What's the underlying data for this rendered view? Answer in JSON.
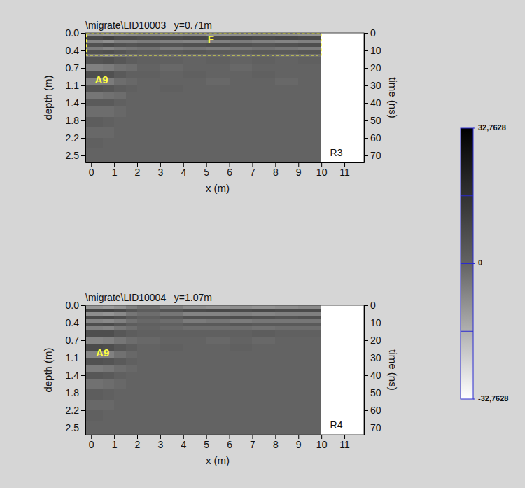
{
  "chart_data": [
    {
      "type": "heatmap",
      "title": "\\migrate\\LID10003   y=0.71m",
      "xlabel": "x (m)",
      "ylabel": "depth (m)",
      "y2label": "time (ns)",
      "xlim": [
        -0.25,
        11.85
      ],
      "xticks": [
        0,
        1,
        2,
        3,
        4,
        5,
        6,
        7,
        8,
        9,
        10,
        11
      ],
      "ylim": [
        0,
        2.664
      ],
      "yticks": [
        {
          "value": 0,
          "label": "0.0"
        },
        {
          "value": 0.36,
          "label": "0.4"
        },
        {
          "value": 0.72,
          "label": "0.7"
        },
        {
          "value": 1.08,
          "label": "1.1"
        },
        {
          "value": 1.44,
          "label": "1.4"
        },
        {
          "value": 1.8,
          "label": "1.8"
        },
        {
          "value": 2.16,
          "label": "2.2"
        },
        {
          "value": 2.52,
          "label": "2.5"
        }
      ],
      "y2lim": [
        0,
        74
      ],
      "y2ticks": [
        0,
        10,
        20,
        30,
        40,
        50,
        60,
        70
      ],
      "x_edges": [
        -0.25,
        0.5,
        1,
        1.5,
        2,
        3,
        4,
        5,
        6,
        7,
        8,
        9,
        10
      ],
      "time_edges": [
        0,
        2,
        4,
        6,
        8,
        10,
        12,
        14,
        18,
        22,
        26,
        30,
        34,
        38,
        42,
        48,
        54,
        60,
        66,
        74
      ],
      "cells": [
        [
          -10,
          -12,
          -10,
          -9,
          -8,
          -9,
          -8,
          -10,
          -9,
          -8,
          -9,
          -10
        ],
        [
          9,
          11,
          8,
          8,
          7,
          8,
          9,
          8,
          9,
          8,
          9,
          8
        ],
        [
          -7,
          -9,
          -6,
          -6,
          -5,
          -6,
          -7,
          -6,
          -5,
          -6,
          -7,
          -6
        ],
        [
          6,
          8,
          6,
          5,
          6,
          5,
          6,
          7,
          6,
          5,
          6,
          7
        ],
        [
          -5,
          -7,
          -5,
          -4,
          -3,
          -5,
          -4,
          -5,
          -4,
          -3,
          -4,
          -5
        ],
        [
          6,
          7,
          5,
          3,
          2,
          3,
          4,
          3,
          2,
          3,
          3,
          4
        ],
        [
          -4,
          -6,
          -4,
          -3,
          -1,
          -2,
          -2,
          -1,
          -2,
          -1,
          -2,
          -2
        ],
        [
          5,
          6,
          4,
          2,
          1,
          1,
          0,
          1,
          0,
          1,
          0,
          1
        ],
        [
          -6,
          -5,
          -3,
          -2,
          0,
          -1,
          0,
          0,
          -1,
          0,
          0,
          0
        ],
        [
          7,
          6,
          3,
          1,
          1,
          0,
          1,
          0,
          0,
          1,
          0,
          0
        ],
        [
          -6,
          -5,
          -2,
          -1,
          0,
          0,
          0,
          -1,
          0,
          0,
          -1,
          0
        ],
        [
          5,
          4,
          2,
          1,
          0,
          1,
          0,
          0,
          0,
          0,
          0,
          0
        ],
        [
          -4,
          -3,
          -2,
          0,
          0,
          0,
          0,
          0,
          0,
          0,
          0,
          0
        ],
        [
          3,
          3,
          1,
          0,
          0,
          0,
          0,
          0,
          0,
          0,
          0,
          0
        ],
        [
          -2,
          -2,
          -1,
          0,
          0,
          0,
          0,
          0,
          0,
          0,
          0,
          0
        ],
        [
          2,
          1,
          0,
          0,
          0,
          0,
          0,
          0,
          0,
          0,
          0,
          0
        ],
        [
          -1,
          -1,
          0,
          0,
          0,
          0,
          0,
          0,
          0,
          0,
          0,
          0
        ],
        [
          1,
          0,
          0,
          0,
          0,
          0,
          0,
          0,
          0,
          0,
          0,
          0
        ],
        [
          0,
          0,
          0,
          0,
          0,
          0,
          0,
          0,
          0,
          0,
          0,
          0
        ]
      ],
      "highlight": {
        "x": [
          -0.2,
          10
        ],
        "y": [
          0.01,
          0.46
        ]
      },
      "annotations": [
        {
          "text": "F",
          "x": 5.2,
          "y": 0.14
        },
        {
          "text": "A9",
          "x": 0.45,
          "y": 0.98
        }
      ],
      "panel_label": {
        "text": "R3",
        "x": 10.65,
        "y": 2.48
      }
    },
    {
      "type": "heatmap",
      "title": "\\migrate\\LID10004   y=1.07m",
      "xlabel": "x (m)",
      "ylabel": "depth (m)",
      "y2label": "time (ns)",
      "xlim": [
        -0.25,
        11.85
      ],
      "xticks": [
        0,
        1,
        2,
        3,
        4,
        5,
        6,
        7,
        8,
        9,
        10,
        11
      ],
      "ylim": [
        0,
        2.664
      ],
      "yticks": [
        {
          "value": 0,
          "label": "0.0"
        },
        {
          "value": 0.36,
          "label": "0.4"
        },
        {
          "value": 0.72,
          "label": "0.7"
        },
        {
          "value": 1.08,
          "label": "1.1"
        },
        {
          "value": 1.44,
          "label": "1.4"
        },
        {
          "value": 1.8,
          "label": "1.8"
        },
        {
          "value": 2.16,
          "label": "2.2"
        },
        {
          "value": 2.52,
          "label": "2.5"
        }
      ],
      "y2lim": [
        0,
        74
      ],
      "y2ticks": [
        0,
        10,
        20,
        30,
        40,
        50,
        60,
        70
      ],
      "x_edges": [
        -0.25,
        0.5,
        1,
        1.5,
        2,
        3,
        4,
        5,
        6,
        7,
        8,
        9,
        10
      ],
      "time_edges": [
        0,
        2,
        4,
        6,
        8,
        10,
        12,
        14,
        18,
        22,
        26,
        30,
        34,
        38,
        42,
        48,
        54,
        60,
        66,
        74
      ],
      "cells": [
        [
          -11,
          -12,
          -10,
          -6,
          -3,
          -6,
          -9,
          -10,
          -9,
          -10,
          -9,
          -8
        ],
        [
          10,
          11,
          9,
          5,
          2,
          5,
          8,
          9,
          8,
          9,
          8,
          8
        ],
        [
          -9,
          -10,
          -8,
          -4,
          -2,
          -4,
          -7,
          -7,
          -6,
          -7,
          -6,
          -6
        ],
        [
          8,
          9,
          7,
          3,
          1,
          3,
          6,
          6,
          7,
          6,
          5,
          6
        ],
        [
          -7,
          -8,
          -6,
          -3,
          -1,
          -2,
          -5,
          -4,
          -5,
          -4,
          -4,
          -4
        ],
        [
          7,
          8,
          5,
          2,
          1,
          1,
          3,
          3,
          4,
          3,
          3,
          3
        ],
        [
          -6,
          -7,
          -4,
          -2,
          0,
          -1,
          -2,
          -2,
          -2,
          -3,
          -2,
          -2
        ],
        [
          7,
          7,
          4,
          2,
          1,
          1,
          1,
          1,
          1,
          2,
          1,
          1
        ],
        [
          -7,
          -6,
          -4,
          -2,
          -1,
          0,
          0,
          -1,
          0,
          -1,
          0,
          0
        ],
        [
          8,
          7,
          4,
          2,
          0,
          1,
          0,
          0,
          1,
          0,
          0,
          0
        ],
        [
          -7,
          -6,
          -3,
          -1,
          0,
          0,
          0,
          0,
          0,
          0,
          0,
          0
        ],
        [
          6,
          5,
          3,
          1,
          0,
          0,
          0,
          0,
          0,
          0,
          0,
          0
        ],
        [
          -5,
          -4,
          -2,
          -1,
          0,
          0,
          0,
          0,
          0,
          0,
          0,
          0
        ],
        [
          4,
          3,
          1,
          0,
          0,
          0,
          0,
          0,
          0,
          0,
          0,
          0
        ],
        [
          -3,
          -2,
          -1,
          0,
          0,
          0,
          0,
          0,
          0,
          0,
          0,
          0
        ],
        [
          2,
          1,
          0,
          0,
          0,
          0,
          0,
          0,
          0,
          0,
          0,
          0
        ],
        [
          -1,
          -1,
          0,
          0,
          0,
          0,
          0,
          0,
          0,
          0,
          0,
          0
        ],
        [
          1,
          0,
          0,
          0,
          0,
          0,
          0,
          0,
          0,
          0,
          0,
          0
        ],
        [
          0,
          0,
          0,
          0,
          0,
          0,
          0,
          0,
          0,
          0,
          0,
          0
        ]
      ],
      "annotations": [
        {
          "text": "A9",
          "x": 0.5,
          "y": 1.0
        }
      ],
      "panel_label": {
        "text": "R4",
        "x": 10.65,
        "y": 2.48
      }
    }
  ],
  "colorbar": {
    "range": [
      -32.7628,
      32.7628
    ],
    "ticks": [
      {
        "value": 32.7628,
        "label": "32,7628"
      },
      0,
      {
        "value": -32.7628,
        "label": "-32,7628"
      }
    ]
  }
}
